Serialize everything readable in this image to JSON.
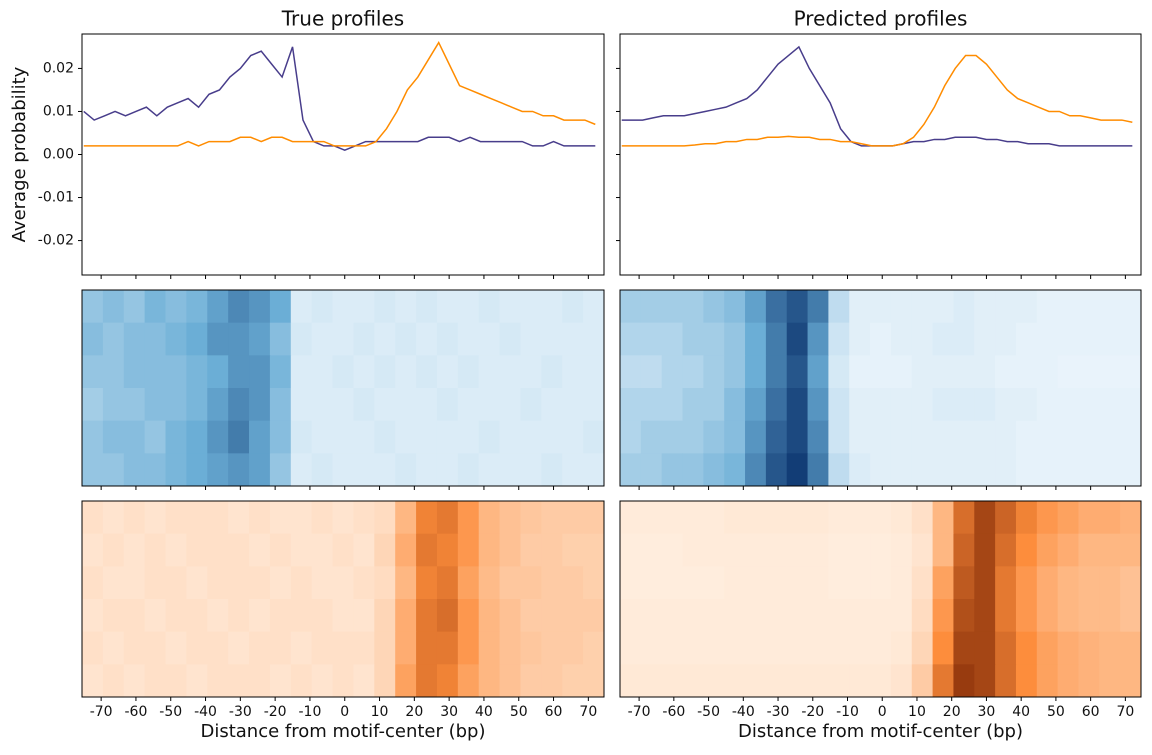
{
  "chart_data": [
    {
      "type": "line",
      "title": "True profiles",
      "ylabel": "Average probability",
      "x": [
        -75,
        -72,
        -69,
        -66,
        -63,
        -60,
        -57,
        -54,
        -51,
        -48,
        -45,
        -42,
        -39,
        -36,
        -33,
        -30,
        -27,
        -24,
        -21,
        -18,
        -15,
        -12,
        -9,
        -6,
        -3,
        0,
        3,
        6,
        9,
        12,
        15,
        18,
        21,
        24,
        27,
        30,
        33,
        36,
        39,
        42,
        45,
        48,
        51,
        54,
        57,
        60,
        63,
        66,
        69,
        72
      ],
      "series": [
        {
          "color": "#483d8b",
          "values": [
            0.01,
            0.008,
            0.009,
            0.01,
            0.009,
            0.01,
            0.011,
            0.009,
            0.011,
            0.012,
            0.013,
            0.011,
            0.014,
            0.015,
            0.018,
            0.02,
            0.023,
            0.024,
            0.021,
            0.018,
            0.025,
            0.008,
            0.003,
            0.002,
            0.002,
            0.001,
            0.002,
            0.003,
            0.003,
            0.003,
            0.003,
            0.003,
            0.003,
            0.004,
            0.004,
            0.004,
            0.003,
            0.004,
            0.003,
            0.003,
            0.003,
            0.003,
            0.003,
            0.002,
            0.002,
            0.003,
            0.002,
            0.002,
            0.002,
            0.002
          ]
        },
        {
          "color": "#ff8c00",
          "values": [
            0.002,
            0.002,
            0.002,
            0.002,
            0.002,
            0.002,
            0.002,
            0.002,
            0.002,
            0.002,
            0.003,
            0.002,
            0.003,
            0.003,
            0.003,
            0.004,
            0.004,
            0.003,
            0.004,
            0.004,
            0.003,
            0.003,
            0.003,
            0.003,
            0.002,
            0.002,
            0.002,
            0.002,
            0.003,
            0.006,
            0.01,
            0.015,
            0.018,
            0.022,
            0.026,
            0.021,
            0.016,
            0.015,
            0.014,
            0.013,
            0.012,
            0.011,
            0.01,
            0.01,
            0.009,
            0.009,
            0.008,
            0.008,
            0.008,
            0.007
          ]
        }
      ],
      "xlim": [
        -75.5,
        74.5
      ],
      "xticks": [
        -70,
        -60,
        -50,
        -40,
        -30,
        -20,
        -10,
        0,
        10,
        20,
        30,
        40,
        50,
        60,
        70
      ],
      "show_xtick_labels": false,
      "ylim": [
        -0.028,
        0.028
      ],
      "yticks": [
        -0.02,
        -0.01,
        {
          "value": 0,
          "label": "0.00"
        },
        0.01,
        0.02
      ],
      "show_ytick_labels": true
    },
    {
      "type": "line",
      "title": "Predicted profiles",
      "x": [
        -75,
        -72,
        -69,
        -66,
        -63,
        -60,
        -57,
        -54,
        -51,
        -48,
        -45,
        -42,
        -39,
        -36,
        -33,
        -30,
        -27,
        -24,
        -21,
        -18,
        -15,
        -12,
        -9,
        -6,
        -3,
        0,
        3,
        6,
        9,
        12,
        15,
        18,
        21,
        24,
        27,
        30,
        33,
        36,
        39,
        42,
        45,
        48,
        51,
        54,
        57,
        60,
        63,
        66,
        69,
        72
      ],
      "series": [
        {
          "color": "#483d8b",
          "values": [
            0.008,
            0.008,
            0.008,
            0.0085,
            0.009,
            0.009,
            0.009,
            0.0095,
            0.01,
            0.0105,
            0.011,
            0.012,
            0.013,
            0.015,
            0.018,
            0.021,
            0.023,
            0.025,
            0.02,
            0.016,
            0.012,
            0.006,
            0.003,
            0.002,
            0.002,
            0.002,
            0.002,
            0.0025,
            0.003,
            0.003,
            0.0035,
            0.0035,
            0.004,
            0.004,
            0.004,
            0.0035,
            0.0035,
            0.003,
            0.003,
            0.0025,
            0.0025,
            0.0025,
            0.002,
            0.002,
            0.002,
            0.002,
            0.002,
            0.002,
            0.002,
            0.002
          ]
        },
        {
          "color": "#ff8c00",
          "values": [
            0.002,
            0.002,
            0.002,
            0.002,
            0.002,
            0.002,
            0.002,
            0.0022,
            0.0025,
            0.0025,
            0.003,
            0.003,
            0.0035,
            0.0035,
            0.004,
            0.004,
            0.0042,
            0.004,
            0.004,
            0.0035,
            0.0035,
            0.003,
            0.003,
            0.0025,
            0.002,
            0.002,
            0.002,
            0.0025,
            0.004,
            0.007,
            0.011,
            0.016,
            0.02,
            0.023,
            0.023,
            0.021,
            0.018,
            0.015,
            0.013,
            0.012,
            0.011,
            0.01,
            0.01,
            0.009,
            0.009,
            0.0085,
            0.008,
            0.008,
            0.008,
            0.0075
          ]
        }
      ],
      "xlim": [
        -75.5,
        74.5
      ],
      "xticks": [
        -70,
        -60,
        -50,
        -40,
        -30,
        -20,
        -10,
        0,
        10,
        20,
        30,
        40,
        50,
        60,
        70
      ],
      "show_xtick_labels": false,
      "ylim": [
        -0.028,
        0.028
      ],
      "yticks": [
        -0.02,
        -0.01,
        {
          "value": 0,
          "label": "0.00"
        },
        0.01,
        0.02
      ],
      "show_ytick_labels": false
    },
    {
      "type": "heatmap",
      "colors": [
        "#f7fbff",
        "#6baed6",
        "#08306b"
      ],
      "clim": [
        0,
        1
      ],
      "xlim": [
        -75.5,
        74.5
      ],
      "xticks": [
        -70,
        -60,
        -50,
        -40,
        -30,
        -20,
        -10,
        0,
        10,
        20,
        30,
        40,
        50,
        60,
        70
      ],
      "show_xtick_labels": false,
      "values": [
        [
          0.35,
          0.4,
          0.35,
          0.45,
          0.4,
          0.45,
          0.55,
          0.65,
          0.6,
          0.5,
          0.1,
          0.12,
          0.1,
          0.1,
          0.12,
          0.1,
          0.12,
          0.1,
          0.1,
          0.12,
          0.1,
          0.1,
          0.1,
          0.12,
          0.1
        ],
        [
          0.4,
          0.35,
          0.4,
          0.4,
          0.45,
          0.5,
          0.6,
          0.6,
          0.55,
          0.4,
          0.12,
          0.1,
          0.1,
          0.12,
          0.1,
          0.12,
          0.1,
          0.12,
          0.1,
          0.1,
          0.12,
          0.1,
          0.1,
          0.1,
          0.1
        ],
        [
          0.35,
          0.35,
          0.4,
          0.4,
          0.4,
          0.45,
          0.5,
          0.6,
          0.6,
          0.45,
          0.1,
          0.1,
          0.12,
          0.1,
          0.12,
          0.1,
          0.12,
          0.1,
          0.12,
          0.1,
          0.1,
          0.1,
          0.12,
          0.1,
          0.1
        ],
        [
          0.3,
          0.35,
          0.35,
          0.4,
          0.4,
          0.45,
          0.55,
          0.65,
          0.6,
          0.4,
          0.1,
          0.1,
          0.1,
          0.12,
          0.1,
          0.1,
          0.1,
          0.12,
          0.1,
          0.1,
          0.1,
          0.12,
          0.1,
          0.1,
          0.1
        ],
        [
          0.35,
          0.4,
          0.4,
          0.35,
          0.45,
          0.5,
          0.6,
          0.7,
          0.55,
          0.4,
          0.12,
          0.1,
          0.1,
          0.1,
          0.12,
          0.1,
          0.1,
          0.1,
          0.1,
          0.12,
          0.1,
          0.1,
          0.1,
          0.1,
          0.12
        ],
        [
          0.35,
          0.35,
          0.4,
          0.4,
          0.45,
          0.5,
          0.55,
          0.6,
          0.55,
          0.35,
          0.1,
          0.12,
          0.1,
          0.1,
          0.1,
          0.12,
          0.1,
          0.1,
          0.12,
          0.1,
          0.1,
          0.1,
          0.12,
          0.1,
          0.1
        ]
      ]
    },
    {
      "type": "heatmap",
      "colors": [
        "#f7fbff",
        "#6baed6",
        "#08306b"
      ],
      "clim": [
        0,
        1
      ],
      "xlim": [
        -75.5,
        74.5
      ],
      "xticks": [
        -70,
        -60,
        -50,
        -40,
        -30,
        -20,
        -10,
        0,
        10,
        20,
        30,
        40,
        50,
        60,
        70
      ],
      "show_xtick_labels": false,
      "values": [
        [
          0.3,
          0.3,
          0.3,
          0.3,
          0.35,
          0.4,
          0.55,
          0.75,
          0.85,
          0.7,
          0.2,
          0.08,
          0.08,
          0.08,
          0.08,
          0.08,
          0.1,
          0.08,
          0.08,
          0.08,
          0.06,
          0.06,
          0.06,
          0.06,
          0.06
        ],
        [
          0.25,
          0.25,
          0.25,
          0.3,
          0.3,
          0.35,
          0.5,
          0.7,
          0.9,
          0.6,
          0.15,
          0.08,
          0.06,
          0.08,
          0.08,
          0.1,
          0.1,
          0.08,
          0.08,
          0.06,
          0.06,
          0.06,
          0.06,
          0.06,
          0.06
        ],
        [
          0.2,
          0.2,
          0.25,
          0.25,
          0.3,
          0.35,
          0.5,
          0.7,
          0.85,
          0.55,
          0.12,
          0.06,
          0.06,
          0.06,
          0.08,
          0.08,
          0.08,
          0.08,
          0.06,
          0.06,
          0.06,
          0.05,
          0.05,
          0.05,
          0.05
        ],
        [
          0.25,
          0.25,
          0.25,
          0.3,
          0.3,
          0.4,
          0.55,
          0.75,
          0.9,
          0.6,
          0.15,
          0.08,
          0.08,
          0.08,
          0.08,
          0.1,
          0.1,
          0.1,
          0.08,
          0.08,
          0.06,
          0.06,
          0.06,
          0.06,
          0.06
        ],
        [
          0.25,
          0.3,
          0.3,
          0.3,
          0.35,
          0.4,
          0.6,
          0.8,
          0.9,
          0.65,
          0.15,
          0.08,
          0.08,
          0.08,
          0.08,
          0.08,
          0.08,
          0.08,
          0.08,
          0.06,
          0.06,
          0.06,
          0.06,
          0.06,
          0.06
        ],
        [
          0.3,
          0.3,
          0.35,
          0.35,
          0.4,
          0.45,
          0.65,
          0.85,
          0.95,
          0.7,
          0.2,
          0.1,
          0.08,
          0.08,
          0.08,
          0.08,
          0.08,
          0.08,
          0.08,
          0.06,
          0.06,
          0.06,
          0.06,
          0.06,
          0.06
        ]
      ]
    },
    {
      "type": "heatmap",
      "colors": [
        "#fff5eb",
        "#fd8d3c",
        "#7f2704"
      ],
      "clim": [
        0,
        1
      ],
      "xlabel": "Distance from motif-center (bp)",
      "xlim": [
        -75.5,
        74.5
      ],
      "xticks": [
        -70,
        -60,
        -50,
        -40,
        -30,
        -20,
        -10,
        0,
        10,
        20,
        30,
        40,
        50,
        60,
        70
      ],
      "show_xtick_labels": true,
      "values": [
        [
          0.1,
          0.08,
          0.1,
          0.08,
          0.1,
          0.1,
          0.1,
          0.08,
          0.1,
          0.08,
          0.08,
          0.1,
          0.08,
          0.1,
          0.12,
          0.3,
          0.55,
          0.6,
          0.45,
          0.3,
          0.25,
          0.22,
          0.2,
          0.2,
          0.2
        ],
        [
          0.08,
          0.1,
          0.08,
          0.1,
          0.08,
          0.1,
          0.1,
          0.1,
          0.08,
          0.1,
          0.08,
          0.08,
          0.1,
          0.08,
          0.15,
          0.35,
          0.6,
          0.55,
          0.45,
          0.3,
          0.25,
          0.2,
          0.2,
          0.18,
          0.18
        ],
        [
          0.1,
          0.08,
          0.08,
          0.1,
          0.1,
          0.08,
          0.1,
          0.1,
          0.1,
          0.08,
          0.1,
          0.08,
          0.08,
          0.1,
          0.12,
          0.3,
          0.55,
          0.6,
          0.4,
          0.28,
          0.22,
          0.22,
          0.2,
          0.2,
          0.18
        ],
        [
          0.08,
          0.1,
          0.1,
          0.08,
          0.1,
          0.1,
          0.08,
          0.1,
          0.08,
          0.1,
          0.1,
          0.1,
          0.08,
          0.08,
          0.15,
          0.35,
          0.6,
          0.65,
          0.45,
          0.3,
          0.25,
          0.2,
          0.2,
          0.2,
          0.2
        ],
        [
          0.1,
          0.08,
          0.1,
          0.1,
          0.08,
          0.1,
          0.1,
          0.08,
          0.1,
          0.1,
          0.08,
          0.1,
          0.1,
          0.1,
          0.15,
          0.35,
          0.6,
          0.6,
          0.45,
          0.3,
          0.25,
          0.22,
          0.2,
          0.2,
          0.18
        ],
        [
          0.08,
          0.1,
          0.08,
          0.1,
          0.1,
          0.08,
          0.1,
          0.1,
          0.1,
          0.08,
          0.1,
          0.08,
          0.1,
          0.08,
          0.15,
          0.4,
          0.6,
          0.55,
          0.4,
          0.3,
          0.25,
          0.2,
          0.2,
          0.18,
          0.18
        ]
      ]
    },
    {
      "type": "heatmap",
      "colors": [
        "#fff5eb",
        "#fd8d3c",
        "#7f2704"
      ],
      "clim": [
        0,
        1
      ],
      "xlabel": "Distance from motif-center (bp)",
      "xlim": [
        -75.5,
        74.5
      ],
      "xticks": [
        -70,
        -60,
        -50,
        -40,
        -30,
        -20,
        -10,
        0,
        10,
        20,
        30,
        40,
        50,
        60,
        70
      ],
      "show_xtick_labels": true,
      "values": [
        [
          0.05,
          0.05,
          0.05,
          0.05,
          0.05,
          0.06,
          0.06,
          0.06,
          0.06,
          0.06,
          0.05,
          0.05,
          0.05,
          0.06,
          0.1,
          0.3,
          0.65,
          0.85,
          0.7,
          0.55,
          0.45,
          0.4,
          0.35,
          0.35,
          0.32
        ],
        [
          0.04,
          0.04,
          0.04,
          0.05,
          0.05,
          0.05,
          0.05,
          0.05,
          0.05,
          0.05,
          0.04,
          0.04,
          0.04,
          0.05,
          0.08,
          0.3,
          0.7,
          0.85,
          0.65,
          0.5,
          0.4,
          0.35,
          0.3,
          0.3,
          0.3
        ],
        [
          0.04,
          0.04,
          0.04,
          0.04,
          0.04,
          0.05,
          0.05,
          0.05,
          0.05,
          0.05,
          0.04,
          0.04,
          0.04,
          0.05,
          0.1,
          0.4,
          0.75,
          0.85,
          0.6,
          0.45,
          0.35,
          0.3,
          0.28,
          0.28,
          0.25
        ],
        [
          0.05,
          0.05,
          0.05,
          0.05,
          0.05,
          0.05,
          0.05,
          0.05,
          0.05,
          0.05,
          0.05,
          0.05,
          0.05,
          0.05,
          0.12,
          0.45,
          0.8,
          0.85,
          0.6,
          0.45,
          0.35,
          0.3,
          0.28,
          0.28,
          0.25
        ],
        [
          0.05,
          0.05,
          0.05,
          0.05,
          0.05,
          0.05,
          0.05,
          0.05,
          0.05,
          0.05,
          0.05,
          0.05,
          0.05,
          0.06,
          0.15,
          0.5,
          0.85,
          0.85,
          0.65,
          0.5,
          0.4,
          0.35,
          0.32,
          0.3,
          0.3
        ],
        [
          0.06,
          0.06,
          0.06,
          0.06,
          0.06,
          0.06,
          0.06,
          0.06,
          0.06,
          0.06,
          0.06,
          0.06,
          0.06,
          0.08,
          0.2,
          0.6,
          0.9,
          0.85,
          0.65,
          0.5,
          0.4,
          0.35,
          0.32,
          0.3,
          0.3
        ]
      ]
    }
  ]
}
